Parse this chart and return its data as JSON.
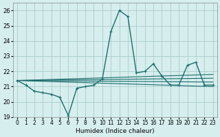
{
  "title": "",
  "xlabel": "Humidex (Indice chaleur)",
  "ylabel": "",
  "background_color": "#d6eeee",
  "grid_color": "#b0d0d0",
  "line_color": "#1a6b6b",
  "xlim": [
    -0.5,
    23.5
  ],
  "ylim": [
    19,
    26.5
  ],
  "yticks": [
    19,
    20,
    21,
    22,
    23,
    24,
    25,
    26
  ],
  "xtick_labels": [
    "0",
    "1",
    "2",
    "3",
    "4",
    "5",
    "6",
    "7",
    "8",
    "9",
    "10",
    "11",
    "12",
    "13",
    "14",
    "15",
    "16",
    "17",
    "18",
    "19",
    "20",
    "21",
    "22",
    "23"
  ],
  "series1_x": [
    0,
    1,
    2,
    3,
    4,
    5,
    6,
    7,
    8,
    9,
    10,
    11,
    12,
    13,
    14,
    15,
    16,
    17,
    18,
    19,
    20,
    21,
    22,
    23
  ],
  "series1_y": [
    21.4,
    21.1,
    20.7,
    20.6,
    20.5,
    20.3,
    19.1,
    20.9,
    21.0,
    21.1,
    21.5,
    24.6,
    26.0,
    25.6,
    21.9,
    22.0,
    22.5,
    21.7,
    21.1,
    21.1,
    22.4,
    22.6,
    21.1,
    21.1
  ],
  "series2_x": [
    0,
    23
  ],
  "series2_y": [
    21.4,
    21.0
  ],
  "series3_x": [
    0,
    23
  ],
  "series3_y": [
    21.4,
    21.3
  ],
  "series4_x": [
    0,
    23
  ],
  "series4_y": [
    21.4,
    21.55
  ],
  "series5_x": [
    0,
    23
  ],
  "series5_y": [
    21.4,
    21.8
  ]
}
